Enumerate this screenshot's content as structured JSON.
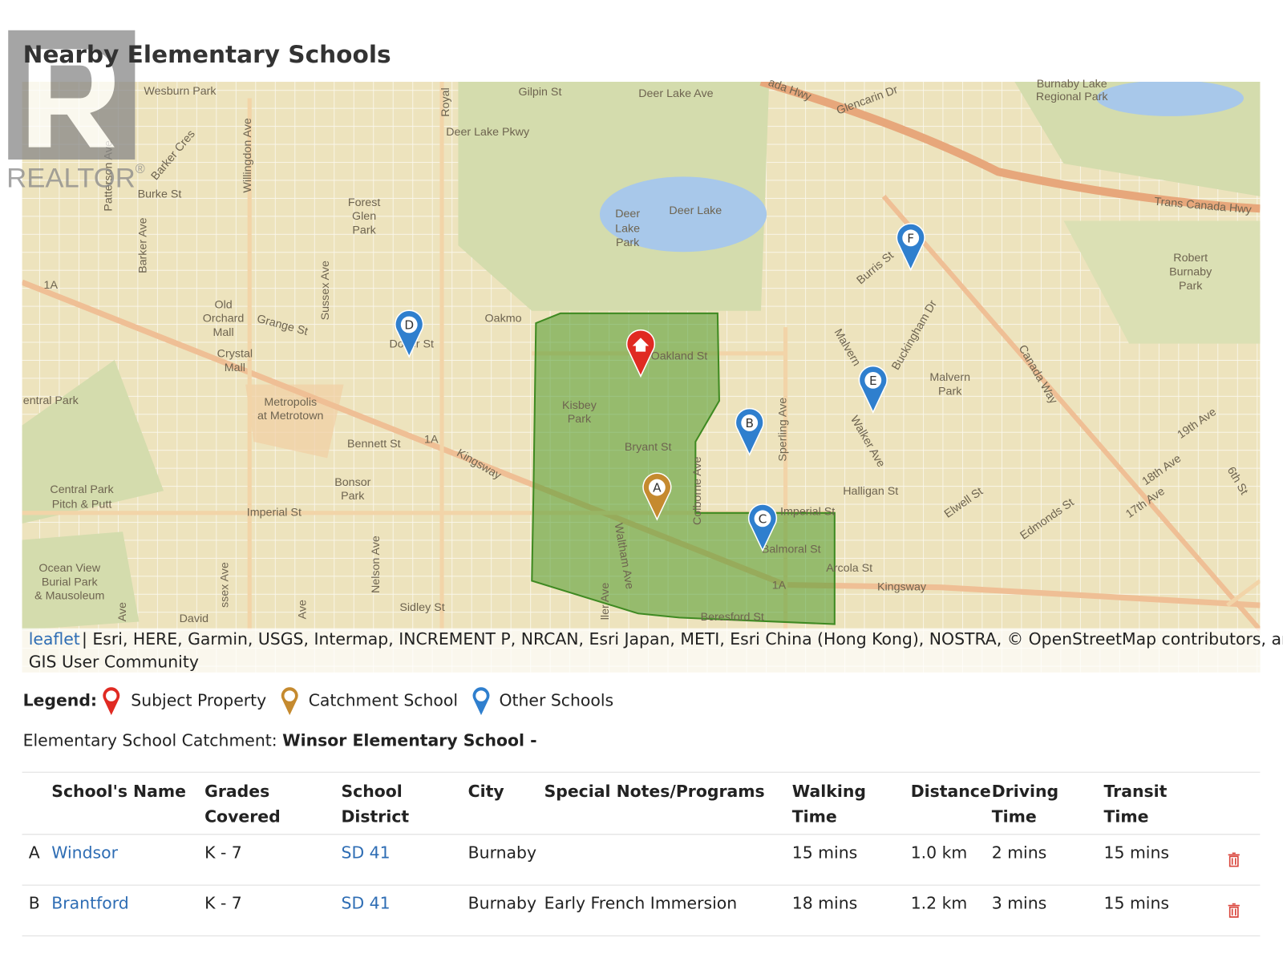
{
  "logo": {
    "text": "REALTOR",
    "mark": "®"
  },
  "header": {
    "title": "Nearby Elementary Schools"
  },
  "map": {
    "labels": [
      "Wesburn Park",
      "Gilpin St",
      "Royal",
      "Deer Lake Ave",
      "ada Hwy",
      "Glencarin Dr",
      "Burnaby Lake",
      "Regional Park",
      "Deer Lake Pkwy",
      "Barker Cres",
      "Willingdon Ave",
      "Burke St",
      "Patterson Ave",
      "Barker Ave",
      "Forest",
      "Glen",
      "Park",
      "Deer",
      "Lake",
      "Park",
      "Deer Lake",
      "Trans Canada Hwy",
      "Robert",
      "Burnaby",
      "Park",
      "Burris St",
      "Sussex Ave",
      "Old",
      "Orchard",
      "Mall",
      "Grange St",
      "Oakmo",
      "Dover St",
      "Oakland St",
      "Buckingham Dr",
      "Malvern",
      "Crystal",
      "Mall",
      "Canada Way",
      "Malvern",
      "Park",
      "entral Park",
      "Metropolis",
      "at Metrotown",
      "Kisbey",
      "Park",
      "Walker Ave",
      "Sperling Ave",
      "Bryant St",
      "Bennett St",
      "Kingsway",
      "19th Ave",
      "Colborne Ave",
      "Bonsor",
      "Park",
      "Halligan St",
      "Central Park",
      "Pitch & Putt",
      "Elwell St",
      "Edmonds St",
      "18th Ave",
      "17th Ave",
      "6th St",
      "Imperial St",
      "Imperial St",
      "Waltham Ave",
      "Balmoral St",
      "Nelson Ave",
      "Ocean View",
      "Burial Park",
      "& Mausoleum",
      "Arcola St",
      "Kingsway",
      "Sidley St",
      "Beresford St",
      "ssex Ave",
      "ller Ave",
      "David",
      "1A",
      "1A",
      "1A",
      "Ave",
      "Ave"
    ],
    "markers": [
      "A",
      "B",
      "C",
      "D",
      "E",
      "F"
    ],
    "attribution": {
      "link": "leaflet",
      "text": "| Esri, HERE, Garmin, USGS, Intermap, INCREMENT P, NRCAN, Esri Japan, METI, Esri China (Hong Kong), NOSTRA, © OpenStreetMap contributors, and the",
      "text2": "GIS User Community"
    }
  },
  "legend": {
    "title": "Legend:",
    "items": [
      "Subject Property",
      "Catchment School",
      "Other Schools"
    ]
  },
  "catchment": {
    "label": "Elementary School Catchment:",
    "school": "Winsor Elementary School -"
  },
  "table": {
    "headers": [
      [
        "School's Name"
      ],
      [
        "Grades",
        "Covered"
      ],
      [
        "School",
        "District"
      ],
      [
        "City"
      ],
      [
        "Special Notes/Programs"
      ],
      [
        "Walking",
        "Time"
      ],
      [
        "Distance"
      ],
      [
        "Driving",
        "Time"
      ],
      [
        "Transit",
        "Time"
      ]
    ],
    "rows": [
      {
        "letter": "A",
        "name": "Windsor",
        "grades": "K - 7",
        "district": "SD 41",
        "city": "Burnaby",
        "walking": "15 mins",
        "distance": "1.0 km",
        "driving": "2 mins",
        "transit": "15 mins"
      },
      {
        "letter": "B",
        "name": "Brantford",
        "grades": "K - 7",
        "district": "SD 41",
        "city": "Burnaby",
        "notes": "Early French Immersion",
        "walking": "18 mins",
        "distance": "1.2 km",
        "driving": "3 mins",
        "transit": "15 mins"
      }
    ]
  }
}
